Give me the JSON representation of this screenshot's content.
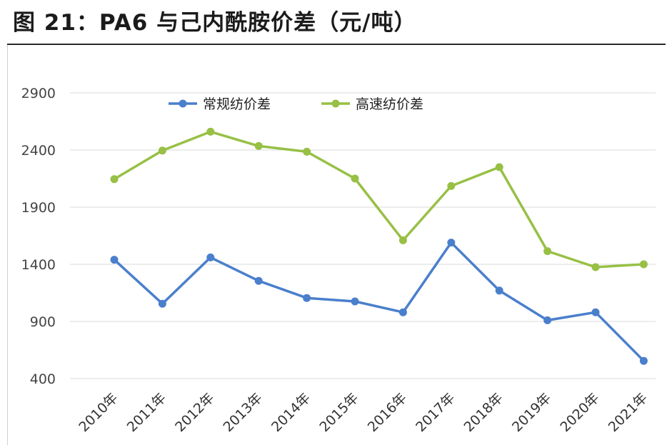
{
  "title": "图 21：PA6 与己内酰胺价差（元/吨）",
  "chart_data": {
    "type": "line",
    "title": "图 21：PA6 与己内酰胺价差（元/吨）",
    "xlabel": "",
    "ylabel": "",
    "categories": [
      "2010年",
      "2011年",
      "2012年",
      "2013年",
      "2014年",
      "2015年",
      "2016年",
      "2017年",
      "2018年",
      "2019年",
      "2020年",
      "2021年"
    ],
    "y_ticks": [
      400,
      900,
      1400,
      1900,
      2400,
      2900
    ],
    "ylim": [
      400,
      2900
    ],
    "grid": true,
    "legend_position": "top-center",
    "series": [
      {
        "name": "常规纺价差",
        "color": "#4a7fcc",
        "values": [
          1440,
          1055,
          1460,
          1255,
          1105,
          1075,
          980,
          1590,
          1170,
          910,
          980,
          555
        ]
      },
      {
        "name": "高速纺价差",
        "color": "#97c045",
        "values": [
          2145,
          2395,
          2560,
          2435,
          2385,
          2150,
          1610,
          2085,
          2250,
          1515,
          1375,
          1400
        ]
      }
    ]
  }
}
